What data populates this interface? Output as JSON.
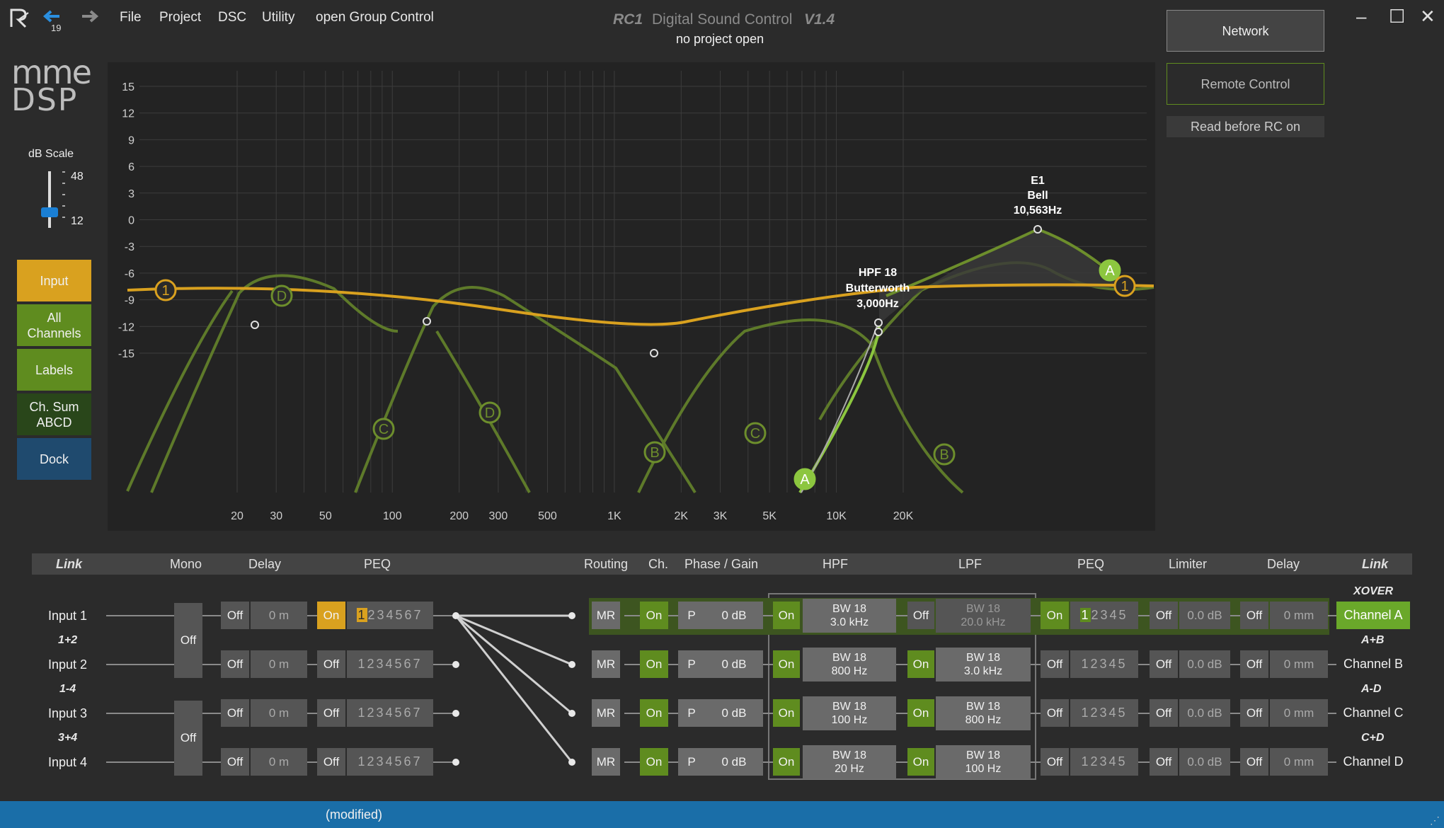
{
  "titlebar": {
    "back_badge": "19",
    "menu": [
      "File",
      "Project",
      "DSC",
      "Utility",
      "open Group Control"
    ],
    "title_rc": "RC1",
    "title_main": "Digital Sound Control",
    "title_version": "V1.4",
    "subtitle": "no project open"
  },
  "right_panel": {
    "network": "Network",
    "remote_control": "Remote Control",
    "read_before": "Read before RC on"
  },
  "left_panel": {
    "logo_top": "mme",
    "logo_bottom": "DSP",
    "db_scale_label": "dB Scale",
    "db_scale_max": "48",
    "db_scale_min": "12",
    "input": "Input",
    "all_channels_1": "All",
    "all_channels_2": "Channels",
    "labels": "Labels",
    "ch_sum_1": "Ch. Sum",
    "ch_sum_2": "ABCD",
    "dock": "Dock"
  },
  "graph": {
    "y_ticks": [
      "15",
      "12",
      "9",
      "6",
      "3",
      "0",
      "-3",
      "-6",
      "-9",
      "-12",
      "-15"
    ],
    "x_ticks": [
      "20",
      "30",
      "50",
      "100",
      "200",
      "300",
      "500",
      "1K",
      "2K",
      "3K",
      "5K",
      "10K",
      "20K"
    ],
    "tooltip_hpf": [
      "HPF 18",
      "Butterworth",
      "3,000Hz"
    ],
    "tooltip_e1": [
      "E1",
      "Bell",
      "10,563Hz"
    ],
    "markers": [
      "1",
      "D",
      "C",
      "D",
      "B",
      "C",
      "A",
      "B",
      "A",
      "1"
    ]
  },
  "routing": {
    "headers": {
      "link_left": "Link",
      "mono": "Mono",
      "delay": "Delay",
      "peq": "PEQ",
      "routing": "Routing",
      "ch": "Ch.",
      "phase_gain": "Phase / Gain",
      "hpf": "HPF",
      "lpf": "LPF",
      "peq_out": "PEQ",
      "limiter": "Limiter",
      "delay_out": "Delay",
      "link_right": "Link"
    },
    "inputs": [
      "Input 1",
      "Input 2",
      "Input 3",
      "Input 4"
    ],
    "input_links": [
      "1+2",
      "1-4",
      "3+4"
    ],
    "mono_off": "Off",
    "delay_state": "Off",
    "delay_value": "0 m",
    "peq_in_states": [
      "On",
      "Off",
      "Off",
      "Off"
    ],
    "peq_in_bands": "1234567",
    "mr": "MR",
    "ch_on": "On",
    "phase": "P",
    "gain": "0 dB",
    "hpf_states": [
      "On",
      "On",
      "On",
      "On"
    ],
    "hpf_values": [
      [
        "BW 18",
        "3.0 kHz"
      ],
      [
        "BW 18",
        "800 Hz"
      ],
      [
        "BW 18",
        "100 Hz"
      ],
      [
        "BW 18",
        "20 Hz"
      ]
    ],
    "lpf_states": [
      "Off",
      "On",
      "On",
      "On"
    ],
    "lpf_values": [
      [
        "BW 18",
        "20.0 kHz"
      ],
      [
        "BW 18",
        "3.0 kHz"
      ],
      [
        "BW 18",
        "800 Hz"
      ],
      [
        "BW 18",
        "100 Hz"
      ]
    ],
    "peq_out_states": [
      "On",
      "Off",
      "Off",
      "Off"
    ],
    "peq_out_bands": "12345",
    "limiter_state": "Off",
    "limiter_value": "0.0 dB",
    "delay_out_state": "Off",
    "delay_out_value": "0 mm",
    "xover": "XOVER",
    "channels": [
      "Channel A",
      "Channel B",
      "Channel C",
      "Channel D"
    ],
    "channel_links": [
      "A+B",
      "A-D",
      "C+D"
    ]
  },
  "statusbar": {
    "text": "(modified)"
  },
  "colors": {
    "accent_green": "#5f8c1f",
    "accent_gold": "#d9a11f",
    "status_blue": "#1a6ea8"
  }
}
